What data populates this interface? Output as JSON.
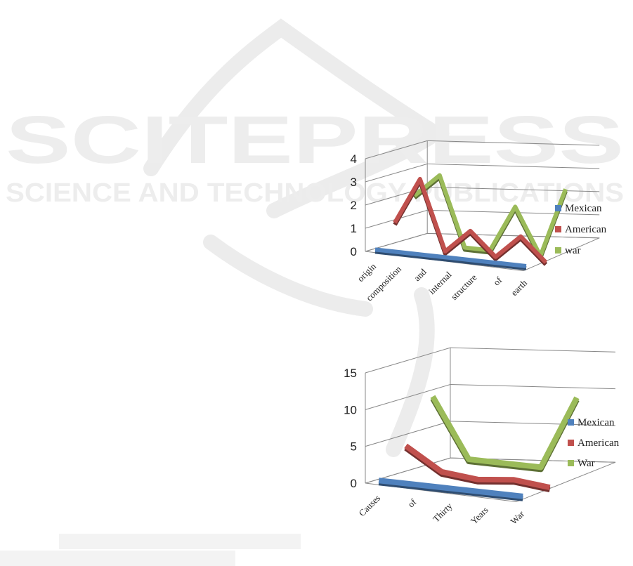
{
  "watermark": {
    "line1": "SCITEPRESS",
    "line2": "SCIENCE AND TECHNOLOGY PUBLICATIONS"
  },
  "chart_data": [
    {
      "type": "line",
      "title": "",
      "xlabel": "",
      "ylabel": "",
      "categories": [
        "origin",
        "composition",
        "and",
        "internal",
        "structure",
        "of",
        "earth"
      ],
      "ylim": [
        0,
        4
      ],
      "yticks": [
        0,
        1,
        2,
        3,
        4
      ],
      "legend": "right",
      "grid": true,
      "series": [
        {
          "name": "Mexican",
          "color": "#4f81bd",
          "values": [
            0,
            0,
            0,
            0,
            0,
            0,
            0
          ]
        },
        {
          "name": "American",
          "color": "#c0504d",
          "values": [
            1,
            3,
            0,
            1,
            0,
            1,
            0
          ]
        },
        {
          "name": "war",
          "color": "#9bbb59",
          "values": [
            2,
            3,
            0,
            0,
            2,
            0,
            3
          ]
        }
      ]
    },
    {
      "type": "line",
      "title": "",
      "xlabel": "",
      "ylabel": "",
      "categories": [
        "Causes",
        "of",
        "Thirty",
        "Years",
        "War"
      ],
      "ylim": [
        0,
        15
      ],
      "yticks": [
        0,
        5,
        10,
        15
      ],
      "legend": "right",
      "grid": true,
      "series": [
        {
          "name": "Mexican",
          "color": "#4f81bd",
          "values": [
            0,
            0,
            0,
            0,
            0
          ]
        },
        {
          "name": "American",
          "color": "#c0504d",
          "values": [
            4,
            1,
            0.5,
            1,
            0.5
          ]
        },
        {
          "name": "War",
          "color": "#9bbb59",
          "values": [
            10,
            2,
            2,
            2,
            12
          ]
        }
      ]
    }
  ]
}
